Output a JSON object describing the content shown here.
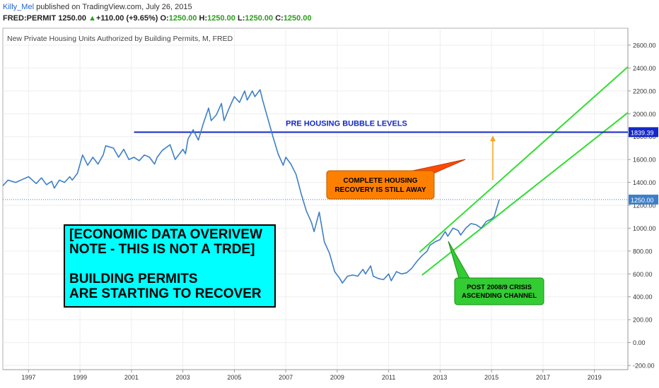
{
  "header": {
    "author": "Killy_Mel",
    "published": " published on TradingView.com, July 26, 2015"
  },
  "ticker": {
    "symbol": "FRED:PERMIT",
    "price": "1250.00",
    "change": "+110.00 (+9.65%)",
    "o_label": "O:",
    "o_value": "1250.00",
    "h_label": "H:",
    "h_value": "1250.00",
    "l_label": "L:",
    "l_value": "1250.00",
    "c_label": "C:",
    "c_value": "1250.00"
  },
  "chart_data": {
    "type": "line",
    "title": "New Private Housing Units Authorized by Building Permits, M, FRED",
    "xlabel": "",
    "ylabel": "",
    "xlim": [
      1996.0,
      2020.3
    ],
    "ylim": [
      -200,
      2700
    ],
    "x_ticks": [
      "1997",
      "1999",
      "2001",
      "2003",
      "2005",
      "2007",
      "2009",
      "2011",
      "2013",
      "2015",
      "2017",
      "2019"
    ],
    "y_ticks": [
      "-200.00",
      "0.00",
      "200.00",
      "400.00",
      "600.00",
      "800.00",
      "1000.00",
      "1200.00",
      "1400.00",
      "1600.00",
      "1800.00",
      "2000.00",
      "2200.00",
      "2400.00",
      "2600.00"
    ],
    "grid": true,
    "series": [
      {
        "color": "#3d7fc6",
        "points": [
          [
            1996.0,
            1370
          ],
          [
            1996.2,
            1420
          ],
          [
            1996.5,
            1400
          ],
          [
            1996.8,
            1430
          ],
          [
            1997.0,
            1450
          ],
          [
            1997.3,
            1390
          ],
          [
            1997.5,
            1440
          ],
          [
            1997.7,
            1380
          ],
          [
            1997.9,
            1410
          ],
          [
            1998.0,
            1350
          ],
          [
            1998.2,
            1420
          ],
          [
            1998.4,
            1400
          ],
          [
            1998.6,
            1450
          ],
          [
            1998.7,
            1420
          ],
          [
            1998.9,
            1480
          ],
          [
            1999.1,
            1640
          ],
          [
            1999.3,
            1550
          ],
          [
            1999.5,
            1620
          ],
          [
            1999.7,
            1560
          ],
          [
            1999.9,
            1640
          ],
          [
            2000.0,
            1720
          ],
          [
            2000.3,
            1700
          ],
          [
            2000.5,
            1620
          ],
          [
            2000.7,
            1690
          ],
          [
            2000.9,
            1600
          ],
          [
            2001.1,
            1620
          ],
          [
            2001.3,
            1590
          ],
          [
            2001.5,
            1640
          ],
          [
            2001.7,
            1620
          ],
          [
            2001.9,
            1560
          ],
          [
            2002.0,
            1620
          ],
          [
            2002.2,
            1680
          ],
          [
            2002.5,
            1730
          ],
          [
            2002.7,
            1600
          ],
          [
            2003.0,
            1690
          ],
          [
            2003.1,
            1650
          ],
          [
            2003.2,
            1780
          ],
          [
            2003.4,
            1860
          ],
          [
            2003.6,
            1770
          ],
          [
            2003.8,
            1920
          ],
          [
            2004.0,
            2050
          ],
          [
            2004.1,
            1940
          ],
          [
            2004.3,
            1990
          ],
          [
            2004.5,
            2090
          ],
          [
            2004.6,
            1940
          ],
          [
            2004.8,
            2050
          ],
          [
            2005.0,
            2150
          ],
          [
            2005.2,
            2100
          ],
          [
            2005.4,
            2200
          ],
          [
            2005.5,
            2120
          ],
          [
            2005.7,
            2200
          ],
          [
            2005.8,
            2150
          ],
          [
            2006.0,
            2210
          ],
          [
            2006.1,
            2120
          ],
          [
            2006.3,
            1960
          ],
          [
            2006.5,
            1800
          ],
          [
            2006.7,
            1650
          ],
          [
            2006.9,
            1550
          ],
          [
            2007.0,
            1620
          ],
          [
            2007.2,
            1560
          ],
          [
            2007.4,
            1470
          ],
          [
            2007.6,
            1300
          ],
          [
            2007.8,
            1150
          ],
          [
            2008.0,
            1050
          ],
          [
            2008.1,
            970
          ],
          [
            2008.3,
            1140
          ],
          [
            2008.5,
            880
          ],
          [
            2008.7,
            780
          ],
          [
            2008.9,
            620
          ],
          [
            2009.1,
            560
          ],
          [
            2009.2,
            520
          ],
          [
            2009.4,
            580
          ],
          [
            2009.6,
            590
          ],
          [
            2009.8,
            580
          ],
          [
            2010.0,
            640
          ],
          [
            2010.1,
            600
          ],
          [
            2010.3,
            670
          ],
          [
            2010.4,
            580
          ],
          [
            2010.6,
            560
          ],
          [
            2010.8,
            550
          ],
          [
            2011.0,
            600
          ],
          [
            2011.1,
            540
          ],
          [
            2011.3,
            620
          ],
          [
            2011.5,
            600
          ],
          [
            2011.7,
            610
          ],
          [
            2011.9,
            650
          ],
          [
            2012.1,
            710
          ],
          [
            2012.3,
            760
          ],
          [
            2012.5,
            800
          ],
          [
            2012.6,
            850
          ],
          [
            2012.8,
            880
          ],
          [
            2013.0,
            900
          ],
          [
            2013.2,
            970
          ],
          [
            2013.3,
            930
          ],
          [
            2013.5,
            1000
          ],
          [
            2013.7,
            980
          ],
          [
            2013.8,
            940
          ],
          [
            2014.0,
            1000
          ],
          [
            2014.2,
            1040
          ],
          [
            2014.4,
            1030
          ],
          [
            2014.6,
            1000
          ],
          [
            2014.8,
            1060
          ],
          [
            2015.0,
            1080
          ],
          [
            2015.1,
            1100
          ],
          [
            2015.3,
            1250
          ]
        ]
      }
    ],
    "annotations": [
      {
        "text": "PRE HOUSING BUBBLE LEVELS",
        "value": 1839.39,
        "color": "#1428c8"
      },
      {
        "text": "1839.39",
        "value": 1839.39
      },
      {
        "text": "1250.00",
        "value": 1250.0
      }
    ],
    "callouts": [
      {
        "lines": [
          "COMPLETE HOUSING",
          "RECOVERY IS STILL AWAY"
        ],
        "color": "#ff8000"
      },
      {
        "lines": [
          "POST 2008/9 CRISIS",
          "ASCENDING CHANNEL"
        ],
        "color": "#33cc33"
      }
    ],
    "trend_lines": [
      {
        "color": "#33dd33",
        "from": [
          2012.2,
          790
        ],
        "to": [
          2020.3,
          2410
        ]
      },
      {
        "color": "#33dd33",
        "from": [
          2012.3,
          590
        ],
        "to": [
          2020.3,
          2010
        ]
      }
    ],
    "note_lines": [
      "[ECONOMIC DATA OVERIVEW",
      "NOTE - THIS IS NOT A TRDE]",
      "",
      "BUILDING PERMITS",
      "ARE STARTING TO RECOVER"
    ]
  }
}
